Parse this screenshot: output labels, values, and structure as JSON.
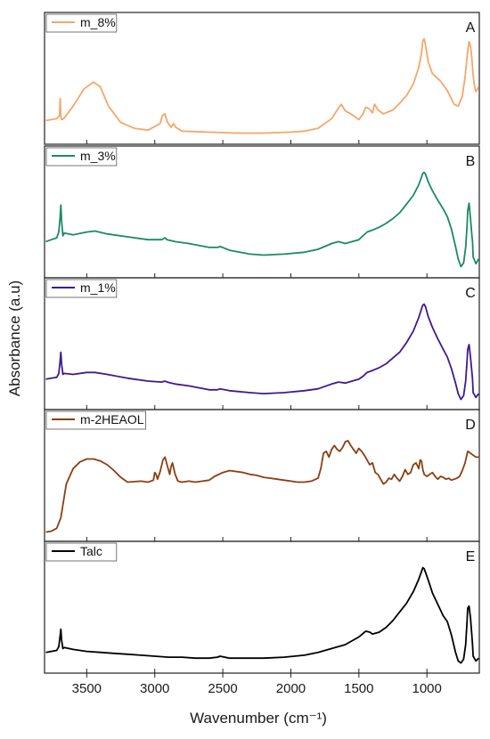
{
  "chart_data": {
    "type": "line",
    "xlabel": "Wavenumber (cm⁻¹)",
    "ylabel": "Absorbance (a.u)",
    "xlim": [
      3810,
      615
    ],
    "x_ticks": [
      3500,
      3000,
      2500,
      2000,
      1500,
      1000
    ],
    "x_tick_labels": [
      "3500",
      "3000",
      "2500",
      "2000",
      "1500",
      "1000"
    ],
    "grid": false,
    "legend_position": "top-left",
    "panels": [
      {
        "letter": "A",
        "name": "m_8%",
        "color": "#f5a66b",
        "baseline": 0.14,
        "x": [
          3800,
          3720,
          3700,
          3695,
          3690,
          3685,
          3670,
          3600,
          3520,
          3450,
          3400,
          3340,
          3250,
          3150,
          3050,
          2960,
          2945,
          2925,
          2910,
          2880,
          2862,
          2845,
          2800,
          2600,
          2400,
          2200,
          2000,
          1900,
          1800,
          1750,
          1700,
          1650,
          1630,
          1600,
          1560,
          1500,
          1470,
          1450,
          1420,
          1400,
          1385,
          1360,
          1320,
          1250,
          1200,
          1150,
          1100,
          1060,
          1040,
          1030,
          1020,
          1010,
          990,
          960,
          930,
          900,
          870,
          850,
          800,
          770,
          740,
          720,
          700,
          690,
          680,
          670,
          660,
          650,
          640,
          620
        ],
        "values": [
          0.15,
          0.17,
          0.2,
          0.38,
          0.2,
          0.16,
          0.17,
          0.3,
          0.48,
          0.55,
          0.5,
          0.3,
          0.13,
          0.07,
          0.05,
          0.12,
          0.2,
          0.22,
          0.14,
          0.08,
          0.12,
          0.08,
          0.04,
          0.03,
          0.02,
          0.02,
          0.03,
          0.04,
          0.07,
          0.12,
          0.17,
          0.28,
          0.32,
          0.25,
          0.22,
          0.16,
          0.22,
          0.29,
          0.27,
          0.23,
          0.32,
          0.26,
          0.22,
          0.26,
          0.33,
          0.41,
          0.53,
          0.7,
          0.85,
          0.98,
          1.0,
          0.93,
          0.76,
          0.64,
          0.6,
          0.56,
          0.5,
          0.46,
          0.32,
          0.3,
          0.4,
          0.6,
          0.88,
          0.97,
          0.93,
          0.8,
          0.62,
          0.5,
          0.45,
          0.5
        ]
      },
      {
        "letter": "B",
        "name": "m_3%",
        "color": "#1a8a65",
        "baseline": 0.06,
        "x": [
          3800,
          3760,
          3720,
          3705,
          3695,
          3690,
          3685,
          3675,
          3665,
          3600,
          3500,
          3440,
          3350,
          3200,
          3050,
          2950,
          2925,
          2910,
          2850,
          2750,
          2600,
          2540,
          2520,
          2450,
          2300,
          2200,
          2050,
          1900,
          1800,
          1700,
          1650,
          1600,
          1550,
          1500,
          1470,
          1440,
          1400,
          1350,
          1300,
          1250,
          1200,
          1150,
          1100,
          1060,
          1040,
          1030,
          1020,
          1010,
          990,
          960,
          920,
          880,
          850,
          820,
          790,
          770,
          750,
          730,
          715,
          705,
          700,
          690,
          680,
          670,
          665,
          660,
          640,
          620
        ],
        "values": [
          0.28,
          0.3,
          0.32,
          0.38,
          0.55,
          0.66,
          0.5,
          0.34,
          0.37,
          0.35,
          0.38,
          0.39,
          0.36,
          0.33,
          0.3,
          0.3,
          0.32,
          0.3,
          0.28,
          0.26,
          0.22,
          0.22,
          0.23,
          0.19,
          0.15,
          0.14,
          0.15,
          0.17,
          0.2,
          0.26,
          0.28,
          0.26,
          0.28,
          0.3,
          0.34,
          0.38,
          0.4,
          0.43,
          0.47,
          0.52,
          0.58,
          0.67,
          0.76,
          0.87,
          0.95,
          0.99,
          1.0,
          0.98,
          0.9,
          0.81,
          0.71,
          0.62,
          0.54,
          0.41,
          0.23,
          0.1,
          0.02,
          0.06,
          0.22,
          0.45,
          0.6,
          0.68,
          0.52,
          0.35,
          0.28,
          0.12,
          0.05,
          0.1
        ]
      },
      {
        "letter": "C",
        "name": "m_1%",
        "color": "#3f1a8c",
        "baseline": 0.05,
        "x": [
          3800,
          3760,
          3720,
          3705,
          3695,
          3690,
          3685,
          3675,
          3665,
          3600,
          3500,
          3440,
          3350,
          3200,
          3050,
          2950,
          2925,
          2910,
          2850,
          2750,
          2600,
          2540,
          2520,
          2450,
          2300,
          2200,
          2050,
          1900,
          1800,
          1700,
          1650,
          1600,
          1550,
          1500,
          1470,
          1440,
          1400,
          1350,
          1300,
          1250,
          1200,
          1150,
          1100,
          1060,
          1040,
          1030,
          1020,
          1010,
          990,
          960,
          920,
          880,
          850,
          820,
          790,
          770,
          750,
          730,
          715,
          705,
          700,
          690,
          680,
          670,
          665,
          660,
          640,
          620
        ],
        "values": [
          0.22,
          0.23,
          0.24,
          0.28,
          0.42,
          0.5,
          0.38,
          0.27,
          0.28,
          0.27,
          0.29,
          0.29,
          0.27,
          0.23,
          0.2,
          0.19,
          0.2,
          0.19,
          0.17,
          0.15,
          0.11,
          0.11,
          0.12,
          0.1,
          0.08,
          0.07,
          0.08,
          0.1,
          0.12,
          0.17,
          0.19,
          0.18,
          0.2,
          0.22,
          0.25,
          0.29,
          0.31,
          0.34,
          0.38,
          0.44,
          0.5,
          0.6,
          0.72,
          0.86,
          0.95,
          0.99,
          1.0,
          0.97,
          0.87,
          0.76,
          0.64,
          0.53,
          0.45,
          0.33,
          0.18,
          0.07,
          0.01,
          0.05,
          0.2,
          0.42,
          0.53,
          0.58,
          0.45,
          0.3,
          0.22,
          0.08,
          0.03,
          0.07
        ]
      },
      {
        "letter": "D",
        "name": "m-2HEAOL",
        "color": "#8a3f12",
        "baseline": 0.02,
        "x": [
          3800,
          3760,
          3720,
          3690,
          3650,
          3600,
          3550,
          3500,
          3450,
          3400,
          3350,
          3300,
          3250,
          3200,
          3100,
          3050,
          3010,
          3000,
          2990,
          2980,
          2960,
          2940,
          2925,
          2910,
          2890,
          2880,
          2870,
          2860,
          2850,
          2830,
          2800,
          2750,
          2700,
          2650,
          2600,
          2580,
          2560,
          2500,
          2450,
          2400,
          2350,
          2300,
          2250,
          2200,
          2150,
          2100,
          2050,
          2000,
          1950,
          1900,
          1850,
          1800,
          1780,
          1760,
          1740,
          1720,
          1700,
          1680,
          1660,
          1640,
          1620,
          1600,
          1580,
          1560,
          1540,
          1520,
          1500,
          1480,
          1460,
          1440,
          1420,
          1400,
          1380,
          1360,
          1340,
          1320,
          1300,
          1280,
          1260,
          1240,
          1220,
          1200,
          1180,
          1160,
          1140,
          1120,
          1100,
          1080,
          1060,
          1050,
          1040,
          1030,
          1020,
          1000,
          980,
          960,
          940,
          920,
          900,
          880,
          860,
          840,
          820,
          800,
          780,
          760,
          740,
          720,
          700,
          680,
          660,
          640,
          620
        ],
        "values": [
          0.0,
          0.01,
          0.04,
          0.15,
          0.5,
          0.66,
          0.73,
          0.76,
          0.76,
          0.74,
          0.7,
          0.64,
          0.57,
          0.52,
          0.53,
          0.52,
          0.54,
          0.62,
          0.6,
          0.55,
          0.63,
          0.75,
          0.78,
          0.7,
          0.6,
          0.68,
          0.72,
          0.66,
          0.6,
          0.53,
          0.52,
          0.53,
          0.52,
          0.53,
          0.54,
          0.56,
          0.58,
          0.62,
          0.64,
          0.63,
          0.62,
          0.6,
          0.59,
          0.57,
          0.56,
          0.55,
          0.54,
          0.53,
          0.52,
          0.52,
          0.53,
          0.56,
          0.66,
          0.82,
          0.84,
          0.78,
          0.86,
          0.9,
          0.86,
          0.84,
          0.88,
          0.94,
          0.95,
          0.9,
          0.86,
          0.82,
          0.87,
          0.84,
          0.8,
          0.75,
          0.7,
          0.72,
          0.62,
          0.6,
          0.55,
          0.5,
          0.52,
          0.56,
          0.55,
          0.6,
          0.56,
          0.53,
          0.58,
          0.65,
          0.6,
          0.62,
          0.7,
          0.72,
          0.66,
          0.75,
          0.74,
          0.65,
          0.6,
          0.58,
          0.6,
          0.62,
          0.58,
          0.55,
          0.58,
          0.57,
          0.55,
          0.56,
          0.54,
          0.55,
          0.56,
          0.58,
          0.64,
          0.72,
          0.84,
          0.82,
          0.8,
          0.78,
          0.78
        ]
      },
      {
        "letter": "E",
        "name": "Talc",
        "color": "#000000",
        "baseline": 0.06,
        "x": [
          3800,
          3760,
          3720,
          3705,
          3695,
          3690,
          3685,
          3675,
          3665,
          3600,
          3500,
          3400,
          3300,
          3200,
          3100,
          3000,
          2900,
          2800,
          2700,
          2600,
          2540,
          2520,
          2450,
          2300,
          2200,
          2050,
          1900,
          1800,
          1700,
          1600,
          1500,
          1450,
          1420,
          1400,
          1350,
          1300,
          1250,
          1200,
          1150,
          1100,
          1060,
          1040,
          1030,
          1020,
          1010,
          990,
          960,
          920,
          880,
          850,
          820,
          790,
          770,
          750,
          730,
          715,
          705,
          700,
          690,
          680,
          670,
          665,
          660,
          640,
          620
        ],
        "values": [
          0.12,
          0.13,
          0.14,
          0.18,
          0.3,
          0.36,
          0.25,
          0.16,
          0.17,
          0.15,
          0.13,
          0.12,
          0.11,
          0.1,
          0.09,
          0.08,
          0.07,
          0.07,
          0.06,
          0.06,
          0.07,
          0.08,
          0.06,
          0.06,
          0.06,
          0.07,
          0.09,
          0.12,
          0.16,
          0.2,
          0.28,
          0.34,
          0.33,
          0.31,
          0.33,
          0.38,
          0.45,
          0.54,
          0.63,
          0.75,
          0.88,
          0.96,
          1.0,
          0.99,
          0.95,
          0.87,
          0.74,
          0.62,
          0.5,
          0.44,
          0.3,
          0.12,
          0.03,
          0.01,
          0.05,
          0.2,
          0.45,
          0.58,
          0.6,
          0.48,
          0.3,
          0.2,
          0.08,
          0.03,
          0.06
        ]
      }
    ]
  }
}
